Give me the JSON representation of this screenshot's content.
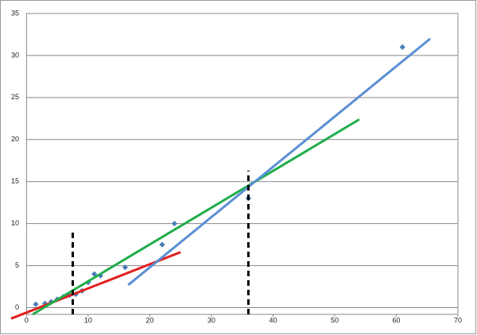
{
  "chart_data": {
    "type": "scatter",
    "x": [
      1.5,
      3,
      4,
      5,
      6,
      7,
      8,
      9,
      10,
      11,
      12,
      16,
      22,
      24,
      36,
      61
    ],
    "values": [
      0.4,
      0.5,
      0.7,
      1.0,
      1.3,
      1.5,
      1.6,
      2.0,
      3.0,
      4.0,
      3.8,
      4.8,
      7.5,
      10,
      13,
      31
    ],
    "color": "#4a7ebb",
    "lines": [
      {
        "color": "#e31e1e",
        "dashed": false,
        "x": [
          -2.5,
          25
        ],
        "values": [
          -1.3,
          6.6
        ]
      },
      {
        "color": "#1fad4b",
        "dashed": false,
        "x": [
          1,
          54
        ],
        "values": [
          -0.8,
          22.4
        ]
      },
      {
        "color": "#5b8fd4",
        "dashed": false,
        "x": [
          16.5,
          65.5
        ],
        "values": [
          2.7,
          32
        ]
      },
      {
        "color": "#000000",
        "dashed": true,
        "x": [
          7.5,
          7.5
        ],
        "values": [
          -0.8,
          9
        ]
      },
      {
        "color": "#000000",
        "dashed": true,
        "x": [
          36,
          36
        ],
        "values": [
          -0.8,
          16.3
        ]
      }
    ],
    "xlim": [
      -2.5,
      70
    ],
    "ylim": [
      -0.8,
      35
    ],
    "xticks": [
      0,
      10,
      20,
      30,
      40,
      50,
      60,
      70
    ],
    "yticks": [
      0,
      5,
      10,
      15,
      20,
      25,
      30,
      35
    ],
    "grid": true
  }
}
